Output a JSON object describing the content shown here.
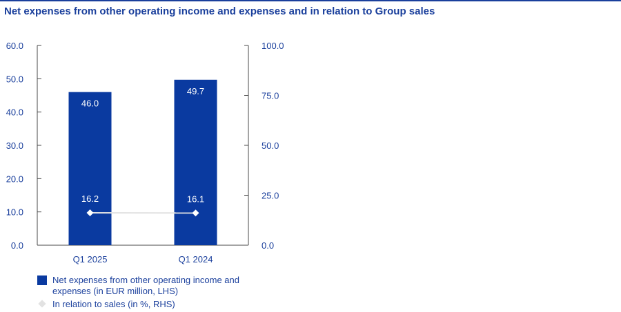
{
  "title": "Net expenses from other operating income and expenses and in relation to Group sales",
  "colors": {
    "accent": "#1a3f9c",
    "bar": "#0a3aa0",
    "line": "#e2e2e2",
    "axis": "#4a4a4a"
  },
  "chart_data": {
    "type": "bar",
    "categories": [
      "Q1 2025",
      "Q1 2024"
    ],
    "series": [
      {
        "name": "Net expenses from other operating income and expenses (in EUR million, LHS)",
        "type": "bar",
        "axis": "left",
        "values": [
          46.0,
          49.7
        ],
        "labels": [
          "46.0",
          "49.7"
        ]
      },
      {
        "name": "In relation to sales (in %, RHS)",
        "type": "line",
        "axis": "right",
        "values": [
          16.2,
          16.1
        ],
        "labels": [
          "16.2",
          "16.1"
        ]
      }
    ],
    "y_left": {
      "min": 0,
      "max": 60,
      "ticks": [
        "0.0",
        "10.0",
        "20.0",
        "30.0",
        "40.0",
        "50.0",
        "60.0"
      ]
    },
    "y_right": {
      "min": 0,
      "max": 100,
      "ticks": [
        "0.0",
        "25.0",
        "50.0",
        "75.0",
        "100.0"
      ]
    },
    "legend_position": "bottom-left",
    "grid": false
  }
}
